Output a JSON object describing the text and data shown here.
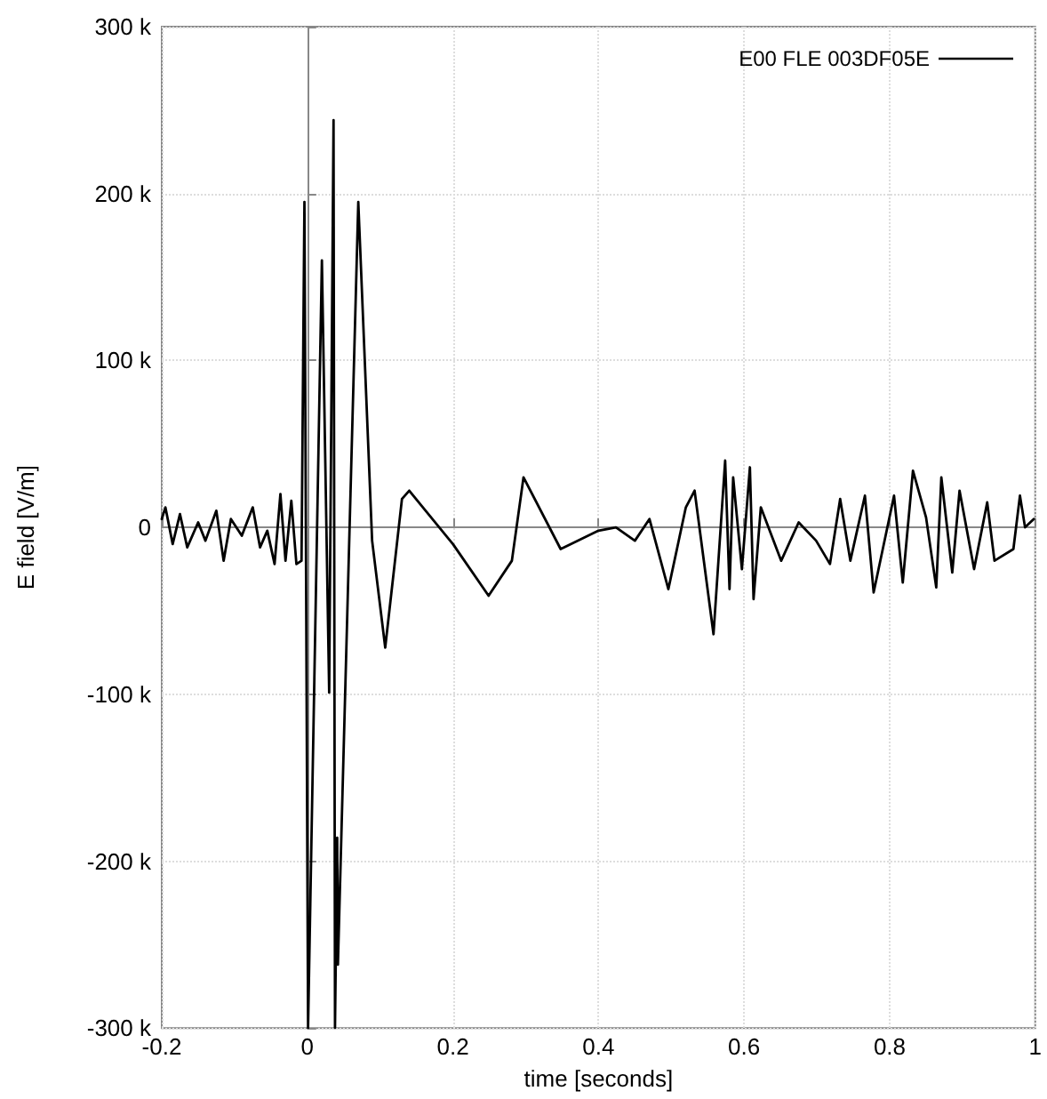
{
  "chart_data": {
    "type": "line",
    "xlabel": "time [seconds]",
    "ylabel": "E field [V/m]",
    "xlim": [
      -0.2,
      1
    ],
    "xticks": [
      -0.2,
      0,
      0.2,
      0.4,
      0.6,
      0.8,
      1
    ],
    "ylim": [
      -300000,
      300000
    ],
    "yticks": [
      {
        "value": -300000,
        "label": "-300 k"
      },
      {
        "value": -200000,
        "label": "-200 k"
      },
      {
        "value": -100000,
        "label": "-100 k"
      },
      {
        "value": 0,
        "label": "0"
      },
      {
        "value": 100000,
        "label": "100 k"
      },
      {
        "value": 200000,
        "label": "200 k"
      },
      {
        "value": 300000,
        "label": "300 k"
      }
    ],
    "grid": true,
    "legend": "top right",
    "marker": "none",
    "line_style": "solid",
    "series": [
      {
        "name": "E00 FLE 003DF05E",
        "color": "#000000",
        "x": [
          -0.2,
          -0.195,
          -0.185,
          -0.175,
          -0.165,
          -0.15,
          -0.14,
          -0.125,
          -0.115,
          -0.105,
          -0.09,
          -0.075,
          -0.065,
          -0.055,
          -0.045,
          -0.037,
          -0.03,
          -0.022,
          -0.015,
          -0.008,
          -0.004,
          0.001,
          0.02,
          0.03,
          0.036,
          0.038,
          0.041,
          0.042,
          0.07,
          0.089,
          0.107,
          0.13,
          0.14,
          0.2,
          0.249,
          0.281,
          0.297,
          0.348,
          0.4,
          0.424,
          0.45,
          0.47,
          0.496,
          0.52,
          0.532,
          0.558,
          0.574,
          0.58,
          0.585,
          0.597,
          0.608,
          0.613,
          0.623,
          0.651,
          0.675,
          0.699,
          0.718,
          0.732,
          0.746,
          0.766,
          0.778,
          0.806,
          0.818,
          0.832,
          0.85,
          0.864,
          0.871,
          0.886,
          0.896,
          0.916,
          0.934,
          0.944,
          0.97,
          0.979,
          0.986,
          0.998
        ],
        "values": [
          5000,
          12000,
          -10000,
          8000,
          -12000,
          3000,
          -8000,
          10000,
          -20000,
          5000,
          -5000,
          12000,
          -12000,
          -2000,
          -22000,
          20000,
          -20000,
          16000,
          -22000,
          -20000,
          195000,
          -300000,
          160000,
          -99000,
          244000,
          -300000,
          -186000,
          -262000,
          195000,
          -8000,
          -72000,
          17000,
          22000,
          -10000,
          -41000,
          -20000,
          30000,
          -13000,
          -2000,
          0,
          -8000,
          5000,
          -37000,
          12000,
          22000,
          -64000,
          40000,
          -37000,
          30000,
          -25000,
          36000,
          -43000,
          12000,
          -20000,
          3000,
          -8000,
          -22000,
          17000,
          -20000,
          19000,
          -39000,
          19000,
          -33000,
          34000,
          6000,
          -36000,
          30000,
          -27000,
          22000,
          -25000,
          15000,
          -20000,
          -13000,
          19000,
          0,
          5000
        ]
      }
    ]
  }
}
